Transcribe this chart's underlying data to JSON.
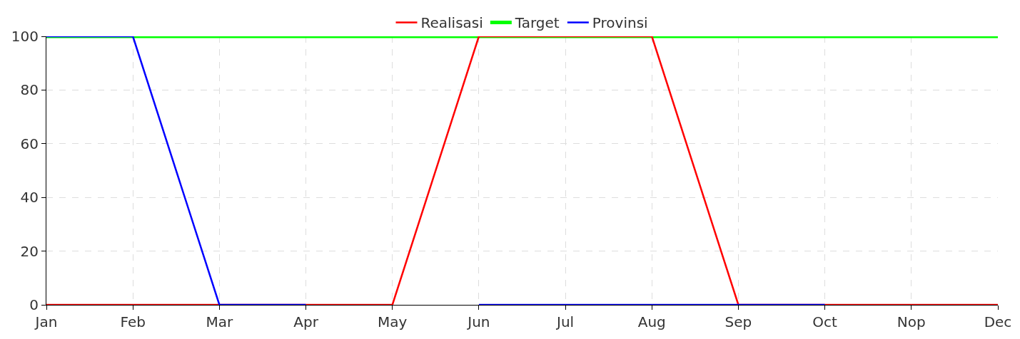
{
  "chart_data": {
    "type": "line",
    "categories": [
      "Jan",
      "Feb",
      "Mar",
      "Apr",
      "May",
      "Jun",
      "Jul",
      "Aug",
      "Sep",
      "Oct",
      "Nop",
      "Dec"
    ],
    "series": [
      {
        "name": "Realisasi",
        "color": "#ff0000",
        "values": [
          0,
          0,
          0,
          0,
          0,
          100,
          100,
          100,
          0,
          0,
          0,
          0
        ]
      },
      {
        "name": "Target",
        "color": "#00ff00",
        "values": [
          100,
          100,
          100,
          100,
          100,
          100,
          100,
          100,
          100,
          100,
          100,
          100
        ]
      },
      {
        "name": "Provinsi",
        "color": "#0000ff",
        "values": [
          100,
          100,
          0,
          0,
          null,
          0,
          0,
          0,
          0,
          0,
          null,
          null
        ]
      }
    ],
    "ylim": [
      0,
      100
    ],
    "yticks": [
      0,
      20,
      40,
      60,
      80,
      100
    ],
    "grid": true,
    "legend": "top",
    "marker": "none",
    "line_style": "solid"
  }
}
